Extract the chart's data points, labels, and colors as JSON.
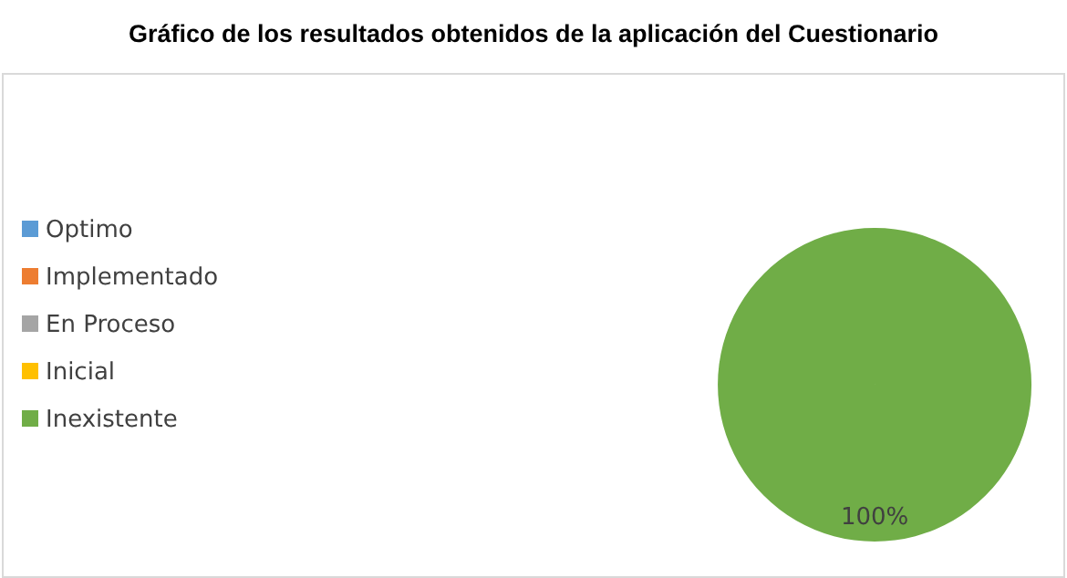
{
  "chart_data": {
    "type": "pie",
    "title": "Gráfico de los resultados obtenidos de la aplicación del Cuestionario",
    "categories": [
      "Optimo",
      "Implementado",
      "En Proceso",
      "Inicial",
      "Inexistente"
    ],
    "values": [
      0,
      0,
      0,
      0,
      100
    ],
    "colors": [
      "#5b9bd5",
      "#ed7d31",
      "#a5a5a5",
      "#ffc000",
      "#70ad47"
    ],
    "value_labels": [
      null,
      null,
      null,
      null,
      "100%"
    ],
    "legend": "left"
  }
}
